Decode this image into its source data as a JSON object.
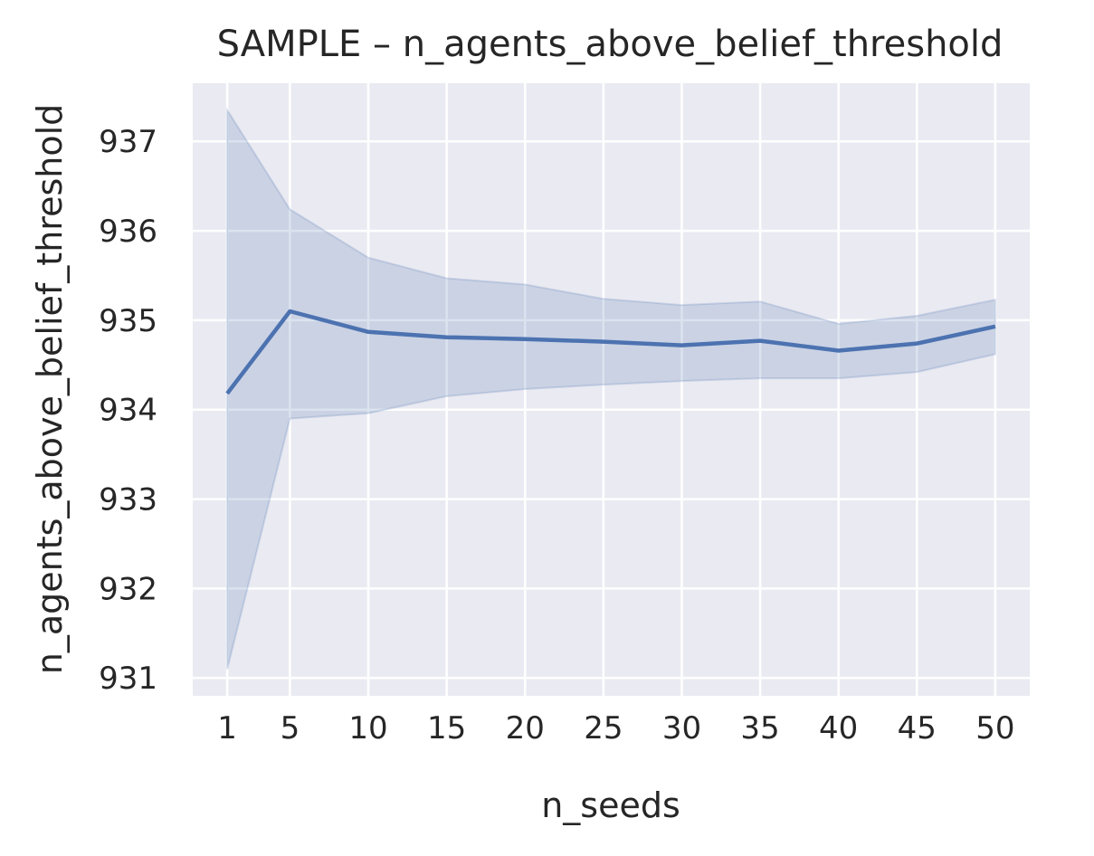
{
  "chart_data": {
    "type": "line",
    "title": "SAMPLE – n_agents_above_belief_threshold",
    "xlabel": "n_seeds",
    "ylabel": "n_agents_above_belief_threshold",
    "x": [
      1,
      5,
      10,
      15,
      20,
      25,
      30,
      35,
      40,
      45,
      50
    ],
    "x_ticks": [
      "1",
      "5",
      "10",
      "15",
      "20",
      "25",
      "30",
      "35",
      "40",
      "45",
      "50"
    ],
    "y_ticks": [
      "931",
      "932",
      "933",
      "934",
      "935",
      "936",
      "937"
    ],
    "xlim": [
      -1.2,
      52.2
    ],
    "ylim": [
      930.8,
      937.65
    ],
    "grid": true,
    "colors": {
      "background": "#EAEAF2",
      "grid": "#FFFFFF",
      "line": "#4C72B0",
      "band": "#4C72B0"
    },
    "series": [
      {
        "values": [
          934.18,
          935.1,
          934.87,
          934.81,
          934.79,
          934.76,
          934.72,
          934.77,
          934.66,
          934.74,
          934.93
        ],
        "ci_lower": [
          931.1,
          933.9,
          933.96,
          934.15,
          934.23,
          934.28,
          934.32,
          934.35,
          934.35,
          934.42,
          934.62
        ],
        "ci_upper": [
          937.35,
          936.24,
          935.7,
          935.47,
          935.4,
          935.24,
          935.17,
          935.21,
          934.96,
          935.05,
          935.23
        ]
      }
    ]
  }
}
